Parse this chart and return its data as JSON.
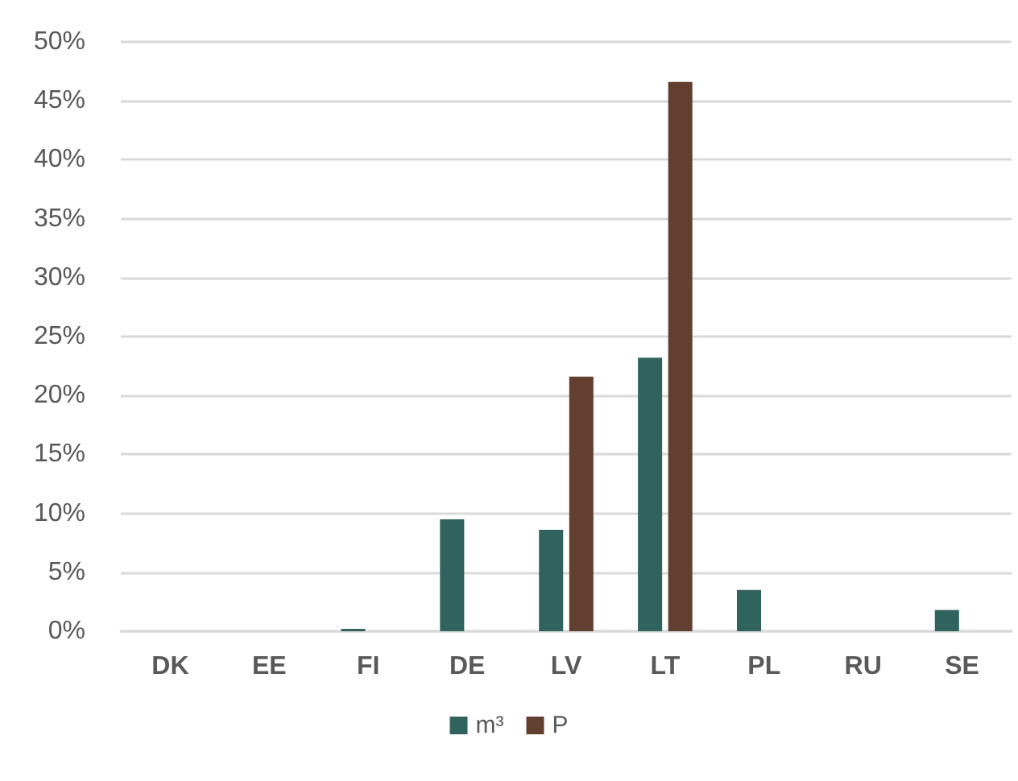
{
  "chart_data": {
    "type": "bar",
    "categories": [
      "DK",
      "EE",
      "FI",
      "DE",
      "LV",
      "LT",
      "PL",
      "RU",
      "SE"
    ],
    "series": [
      {
        "name": "m³",
        "color": "#30635e",
        "values": [
          0,
          0,
          0.2,
          9.5,
          8.6,
          23.2,
          3.5,
          0,
          1.8
        ]
      },
      {
        "name": "P",
        "color": "#633f2f",
        "values": [
          0,
          0,
          0,
          0,
          21.6,
          46.6,
          0,
          0,
          0
        ]
      }
    ],
    "ylim": [
      0,
      50
    ],
    "yticks": [
      {
        "value": 0,
        "label": "0%"
      },
      {
        "value": 5,
        "label": "5%"
      },
      {
        "value": 10,
        "label": "10%"
      },
      {
        "value": 15,
        "label": "15%"
      },
      {
        "value": 20,
        "label": "20%"
      },
      {
        "value": 25,
        "label": "25%"
      },
      {
        "value": 30,
        "label": "30%"
      },
      {
        "value": 35,
        "label": "35%"
      },
      {
        "value": 40,
        "label": "40%"
      },
      {
        "value": 45,
        "label": "45%"
      },
      {
        "value": 50,
        "label": "50%"
      }
    ],
    "grid": "y",
    "legend": "bottom"
  }
}
